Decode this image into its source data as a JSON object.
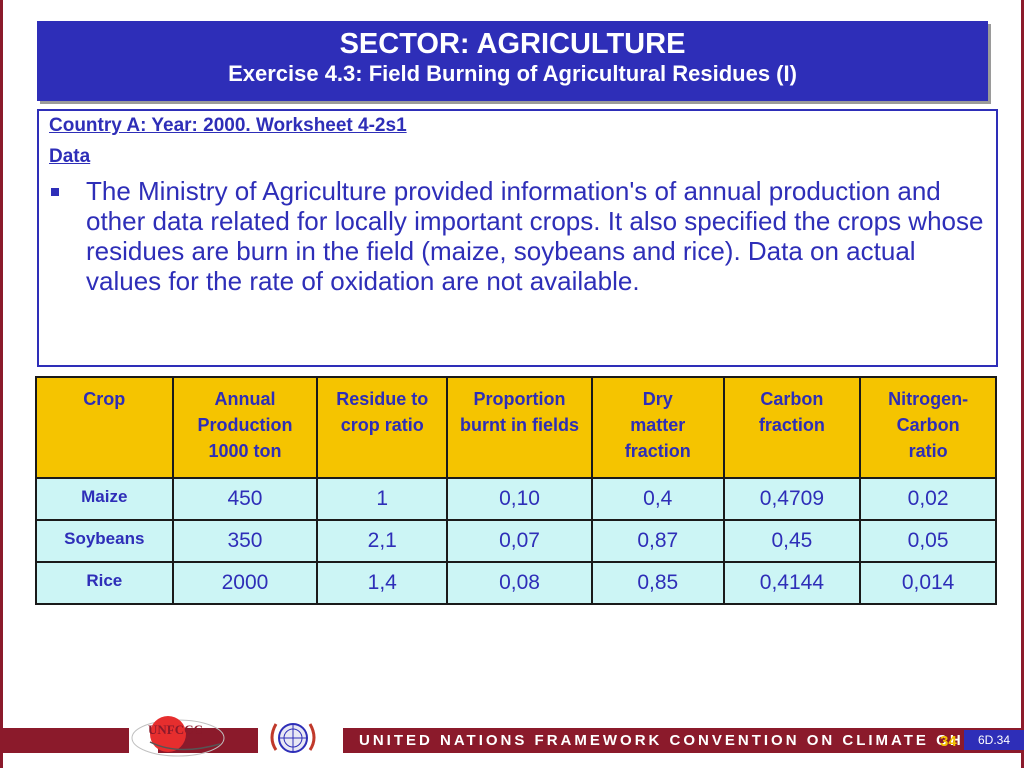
{
  "header": {
    "title": "SECTOR: AGRICULTURE",
    "subtitle": "Exercise 4.3: Field Burning of Agricultural Residues (I)"
  },
  "content": {
    "worksheet": "Country A: Year: 2000. Worksheet 4-2s1",
    "data_heading": "Data",
    "paragraph": "The Ministry of Agriculture provided information's of annual production and other data related for locally important crops. It also specified the crops whose residues are burn in the field (maize, soybeans and rice). Data on actual values for the rate of oxidation are not available."
  },
  "table": {
    "headers": [
      "Crop",
      "Annual Production 1000 ton",
      "Residue to crop ratio",
      "Proportion burnt in fields",
      "Dry matter fraction",
      "Carbon fraction",
      "Nitrogen-Carbon ratio"
    ],
    "rows": [
      [
        "Maize",
        "450",
        "1",
        "0,10",
        "0,4",
        "0,4709",
        "0,02"
      ],
      [
        "Soybeans",
        "350",
        "2,1",
        "0,07",
        "0,87",
        "0,45",
        "0,05"
      ],
      [
        "Rice",
        "2000",
        "1,4",
        "0,08",
        "0,85",
        "0,4144",
        "0,014"
      ]
    ]
  },
  "footer": {
    "org_name": "UNITED NATIONS FRAMEWORK CONVENTION ON CLIMATE CHANGE",
    "logo_text": "UNFCCC",
    "page_number": "34",
    "slide_id": "6D.34"
  },
  "colors": {
    "title_bg": "#2e2eb8",
    "header_bg": "#f5c400",
    "cell_bg": "#ccf5f5",
    "footer_band": "#8b1a2b"
  }
}
